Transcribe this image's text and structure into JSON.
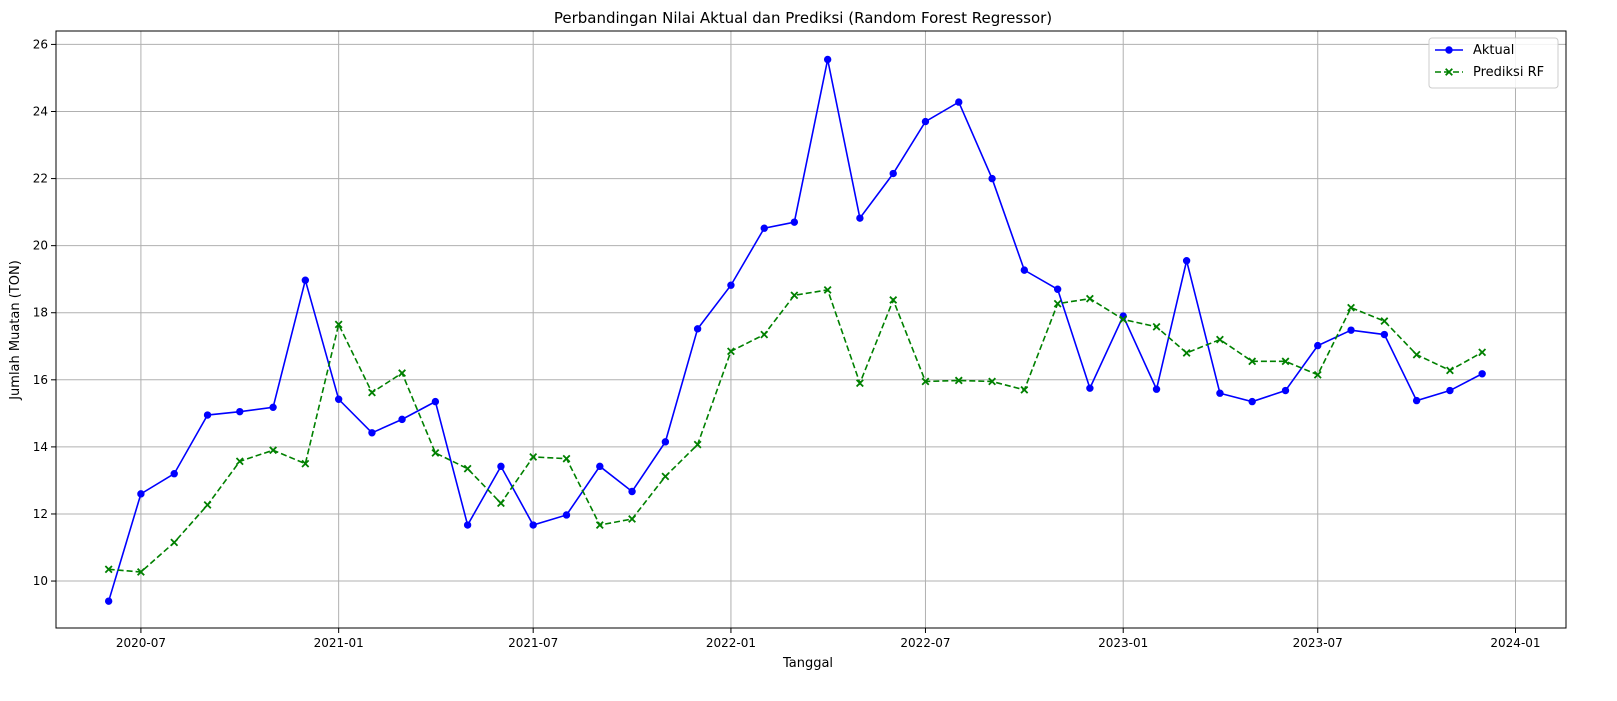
{
  "chart_data": {
    "type": "line",
    "title": "Perbandingan Nilai Aktual dan Prediksi (Random Forest Regressor)",
    "xlabel": "Tanggal",
    "ylabel": "Jumlah Muatan (TON)",
    "ylim": [
      8.6,
      26.4
    ],
    "xlim": [
      "2020-04-13",
      "2024-02-17"
    ],
    "grid": true,
    "legend_position": "top-right",
    "x_ticks": [
      "2020-07",
      "2021-01",
      "2021-07",
      "2022-01",
      "2022-07",
      "2023-01",
      "2023-07",
      "2024-01"
    ],
    "y_ticks": [
      10,
      12,
      14,
      16,
      18,
      20,
      22,
      24,
      26
    ],
    "dates": [
      "2020-06-01",
      "2020-07-01",
      "2020-08-01",
      "2020-09-01",
      "2020-10-01",
      "2020-11-01",
      "2020-12-01",
      "2021-01-01",
      "2021-02-01",
      "2021-03-01",
      "2021-04-01",
      "2021-05-01",
      "2021-06-01",
      "2021-07-01",
      "2021-08-01",
      "2021-09-01",
      "2021-10-01",
      "2021-11-01",
      "2021-12-01",
      "2022-01-01",
      "2022-02-01",
      "2022-03-01",
      "2022-04-01",
      "2022-05-01",
      "2022-06-01",
      "2022-07-01",
      "2022-08-01",
      "2022-09-01",
      "2022-10-01",
      "2022-11-01",
      "2022-12-01",
      "2023-01-01",
      "2023-02-01",
      "2023-03-01",
      "2023-04-01",
      "2023-05-01",
      "2023-06-01",
      "2023-07-01",
      "2023-08-01",
      "2023-09-01",
      "2023-10-01",
      "2023-11-01",
      "2023-12-01"
    ],
    "series": [
      {
        "name": "Aktual",
        "color": "#0000ff",
        "line_style": "solid",
        "marker": "circle",
        "values": [
          9.4,
          12.6,
          13.2,
          14.95,
          15.05,
          15.18,
          18.97,
          15.42,
          14.42,
          14.82,
          15.35,
          11.67,
          13.42,
          11.67,
          11.97,
          13.42,
          12.67,
          14.15,
          17.52,
          18.82,
          20.52,
          20.7,
          25.55,
          20.82,
          22.15,
          23.7,
          24.28,
          22.0,
          19.27,
          18.7,
          15.75,
          17.9,
          15.72,
          19.55,
          15.6,
          15.35,
          15.68,
          17.02,
          17.48,
          17.35,
          15.38,
          15.68,
          16.18
        ]
      },
      {
        "name": "Prediksi RF",
        "color": "#008000",
        "line_style": "dashed",
        "marker": "x",
        "values": [
          10.35,
          10.27,
          11.15,
          12.27,
          13.57,
          13.9,
          13.5,
          17.65,
          15.62,
          16.2,
          13.82,
          13.35,
          12.32,
          13.7,
          13.65,
          11.67,
          11.85,
          13.12,
          14.07,
          16.85,
          17.35,
          18.52,
          18.68,
          15.9,
          18.38,
          15.95,
          15.98,
          15.95,
          15.7,
          18.27,
          18.42,
          17.8,
          17.58,
          16.8,
          17.2,
          16.55,
          16.55,
          16.15,
          18.15,
          17.75,
          16.75,
          16.28,
          16.82
        ]
      }
    ]
  }
}
